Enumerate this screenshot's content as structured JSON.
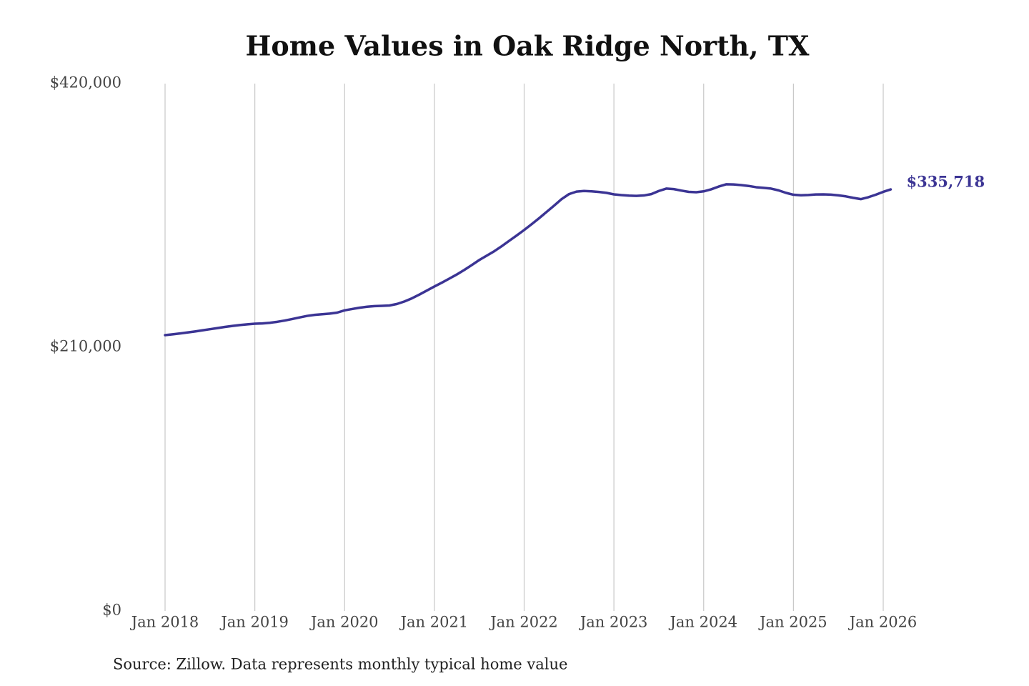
{
  "chart_data": {
    "type": "line",
    "title": "Home Values in Oak Ridge North, TX",
    "source": "Source: Zillow. Data represents monthly typical home value",
    "end_label": "$335,718",
    "x": [
      "2018-01",
      "2018-02",
      "2018-03",
      "2018-04",
      "2018-05",
      "2018-06",
      "2018-07",
      "2018-08",
      "2018-09",
      "2018-10",
      "2018-11",
      "2018-12",
      "2019-01",
      "2019-02",
      "2019-03",
      "2019-04",
      "2019-05",
      "2019-06",
      "2019-07",
      "2019-08",
      "2019-09",
      "2019-10",
      "2019-11",
      "2019-12",
      "2020-01",
      "2020-02",
      "2020-03",
      "2020-04",
      "2020-05",
      "2020-06",
      "2020-07",
      "2020-08",
      "2020-09",
      "2020-10",
      "2020-11",
      "2020-12",
      "2021-01",
      "2021-02",
      "2021-03",
      "2021-04",
      "2021-05",
      "2021-06",
      "2021-07",
      "2021-08",
      "2021-09",
      "2021-10",
      "2021-11",
      "2021-12",
      "2022-01",
      "2022-02",
      "2022-03",
      "2022-04",
      "2022-05",
      "2022-06",
      "2022-07",
      "2022-08",
      "2022-09",
      "2022-10",
      "2022-11",
      "2022-12",
      "2023-01",
      "2023-02",
      "2023-03",
      "2023-04",
      "2023-05",
      "2023-06",
      "2023-07",
      "2023-08",
      "2023-09",
      "2023-10",
      "2023-11",
      "2023-12",
      "2024-01",
      "2024-02",
      "2024-03",
      "2024-04",
      "2024-05",
      "2024-06",
      "2024-07",
      "2024-08",
      "2024-09",
      "2024-10",
      "2024-11",
      "2024-12",
      "2025-01",
      "2025-02",
      "2025-03",
      "2025-04",
      "2025-05",
      "2025-06",
      "2025-07",
      "2025-08",
      "2025-09",
      "2025-10",
      "2025-11",
      "2025-12",
      "2026-01",
      "2026-02"
    ],
    "series": [
      {
        "name": "Home value",
        "color": "#3b3494",
        "values": [
          219700,
          220300,
          221000,
          221800,
          222600,
          223500,
          224400,
          225300,
          226200,
          227000,
          227700,
          228300,
          228800,
          229000,
          229500,
          230300,
          231300,
          232500,
          233800,
          235000,
          235800,
          236300,
          236800,
          237600,
          239400,
          240500,
          241500,
          242300,
          242800,
          243000,
          243300,
          244500,
          246500,
          249000,
          252000,
          255200,
          258400,
          261500,
          264700,
          268000,
          271600,
          275500,
          279500,
          283000,
          286500,
          290500,
          294800,
          299000,
          303400,
          308000,
          312800,
          317800,
          322800,
          328000,
          332000,
          334000,
          334500,
          334200,
          333700,
          333000,
          331800,
          331200,
          330800,
          330600,
          330900,
          332000,
          334500,
          336400,
          336000,
          334800,
          333800,
          333500,
          334200,
          335800,
          338000,
          339800,
          339700,
          339200,
          338500,
          337500,
          337000,
          336400,
          335000,
          333000,
          331500,
          331100,
          331300,
          331700,
          331800,
          331600,
          331000,
          330200,
          329000,
          328000,
          329500,
          331500,
          333800,
          335718
        ]
      }
    ],
    "ylim": [
      0,
      420000
    ],
    "yticks": [
      {
        "value": 0,
        "label": "$0"
      },
      {
        "value": 210000,
        "label": "$210,000"
      },
      {
        "value": 420000,
        "label": "$420,000"
      }
    ],
    "xticks": [
      {
        "value": "2018-01",
        "label": "Jan 2018"
      },
      {
        "value": "2019-01",
        "label": "Jan 2019"
      },
      {
        "value": "2020-01",
        "label": "Jan 2020"
      },
      {
        "value": "2021-01",
        "label": "Jan 2021"
      },
      {
        "value": "2022-01",
        "label": "Jan 2022"
      },
      {
        "value": "2023-01",
        "label": "Jan 2023"
      },
      {
        "value": "2024-01",
        "label": "Jan 2024"
      },
      {
        "value": "2025-01",
        "label": "Jan 2025"
      },
      {
        "value": "2026-01",
        "label": "Jan 2026"
      }
    ],
    "grid": "x"
  }
}
